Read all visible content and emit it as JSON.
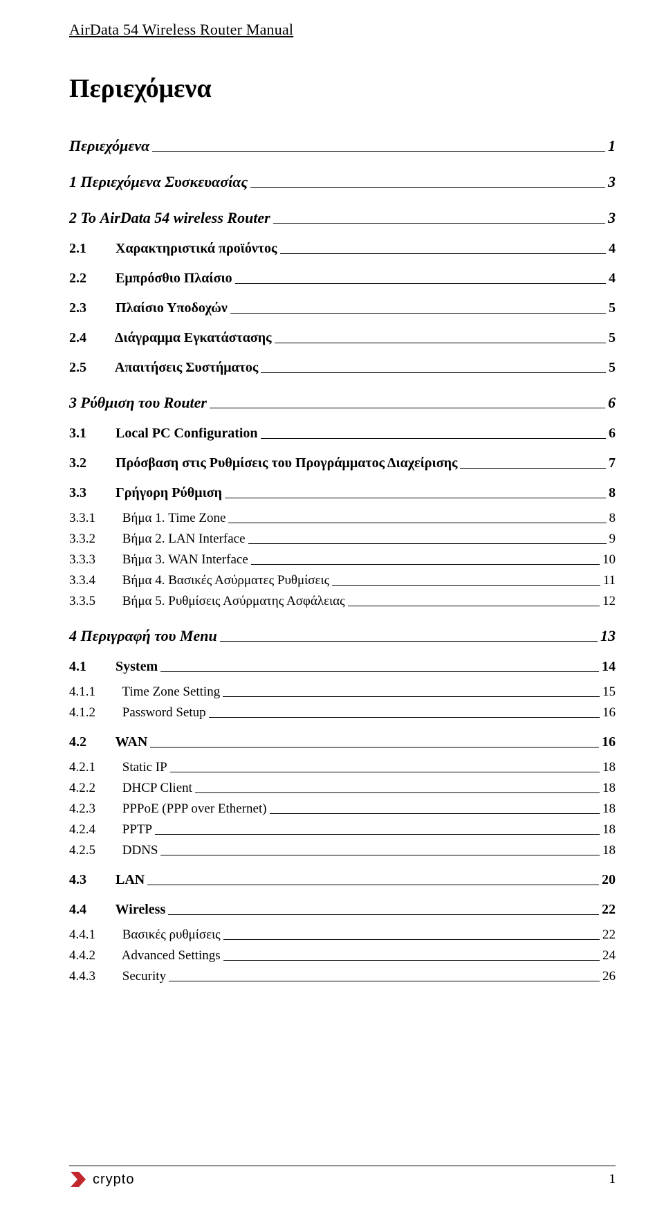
{
  "header": "AirData 54 Wireless Router Manual",
  "title": "Περιεχόμενα",
  "footer": {
    "logo_word": "crypto",
    "page_number": "1"
  },
  "colors": {
    "text": "#000000",
    "background": "#ffffff",
    "logo_red": "#c1272d"
  },
  "toc": [
    {
      "level": 0,
      "num": "",
      "text": "Περιεχόμενα",
      "page": "1",
      "nonum": true
    },
    {
      "level": 0,
      "num": "1",
      "text": "Περιεχόμενα Συσκευασίας",
      "page": "3"
    },
    {
      "level": 0,
      "num": "2",
      "text": "Το AirData 54 wireless Router",
      "page": "3"
    },
    {
      "level": 1,
      "num": "2.1",
      "text": "Χαρακτηριστικά προϊόντος",
      "page": "4"
    },
    {
      "level": 1,
      "num": "2.2",
      "text": "Εμπρόσθιο Πλαίσιο",
      "page": "4"
    },
    {
      "level": 1,
      "num": "2.3",
      "text": "Πλαίσιο Υποδοχών",
      "page": "5"
    },
    {
      "level": 1,
      "num": "2.4",
      "text": "Διάγραμμα Εγκατάστασης",
      "page": "5"
    },
    {
      "level": 1,
      "num": "2.5",
      "text": "Απαιτήσεις Συστήματος",
      "page": "5"
    },
    {
      "level": 0,
      "num": "3",
      "text": "Ρύθμιση του Router",
      "page": "6"
    },
    {
      "level": 1,
      "num": "3.1",
      "text": "Local PC Configuration",
      "page": "6"
    },
    {
      "level": 1,
      "num": "3.2",
      "text": "Πρόσβαση στις Ρυθμίσεις του Προγράμματος Διαχείρισης",
      "page": "7"
    },
    {
      "level": 1,
      "num": "3.3",
      "text": "Γρήγορη Ρύθμιση",
      "page": "8"
    },
    {
      "level": 2,
      "num": "3.3.1",
      "text": "Βήμα 1. Time Zone",
      "page": "8"
    },
    {
      "level": 2,
      "num": "3.3.2",
      "text": "Βήμα 2. LAN Interface",
      "page": "9"
    },
    {
      "level": 2,
      "num": "3.3.3",
      "text": "Βήμα 3. WAN Interface",
      "page": "10"
    },
    {
      "level": 2,
      "num": "3.3.4",
      "text": "Βήμα 4. Βασικές Ασύρματες Ρυθμίσεις",
      "page": "11"
    },
    {
      "level": 2,
      "num": "3.3.5",
      "text": "Βήμα 5. Ρυθμίσεις Ασύρματης Ασφάλειας",
      "page": "12"
    },
    {
      "level": 0,
      "num": "4",
      "text": "Περιγραφή του Menu",
      "page": "13"
    },
    {
      "level": 1,
      "num": "4.1",
      "text": "System",
      "page": "14"
    },
    {
      "level": 2,
      "num": "4.1.1",
      "text": "Time Zone Setting",
      "page": "15"
    },
    {
      "level": 2,
      "num": "4.1.2",
      "text": "Password Setup",
      "page": "16"
    },
    {
      "level": 1,
      "num": "4.2",
      "text": "WAN",
      "page": "16"
    },
    {
      "level": 2,
      "num": "4.2.1",
      "text": "Static IP",
      "page": "18"
    },
    {
      "level": 2,
      "num": "4.2.2",
      "text": "DHCP Client",
      "page": "18"
    },
    {
      "level": 2,
      "num": "4.2.3",
      "text": "PPPoE (PPP over Ethernet)",
      "page": "18"
    },
    {
      "level": 2,
      "num": "4.2.4",
      "text": "PPTP",
      "page": "18"
    },
    {
      "level": 2,
      "num": "4.2.5",
      "text": "DDNS",
      "page": "18"
    },
    {
      "level": 1,
      "num": "4.3",
      "text": "LAN",
      "page": "20"
    },
    {
      "level": 1,
      "num": "4.4",
      "text": "Wireless",
      "page": "22"
    },
    {
      "level": 2,
      "num": "4.4.1",
      "text": "Βασικές ρυθμίσεις",
      "page": "22"
    },
    {
      "level": 2,
      "num": "4.4.2",
      "text": "Advanced Settings",
      "page": "24"
    },
    {
      "level": 2,
      "num": "4.4.3",
      "text": "Security",
      "page": "26"
    }
  ]
}
